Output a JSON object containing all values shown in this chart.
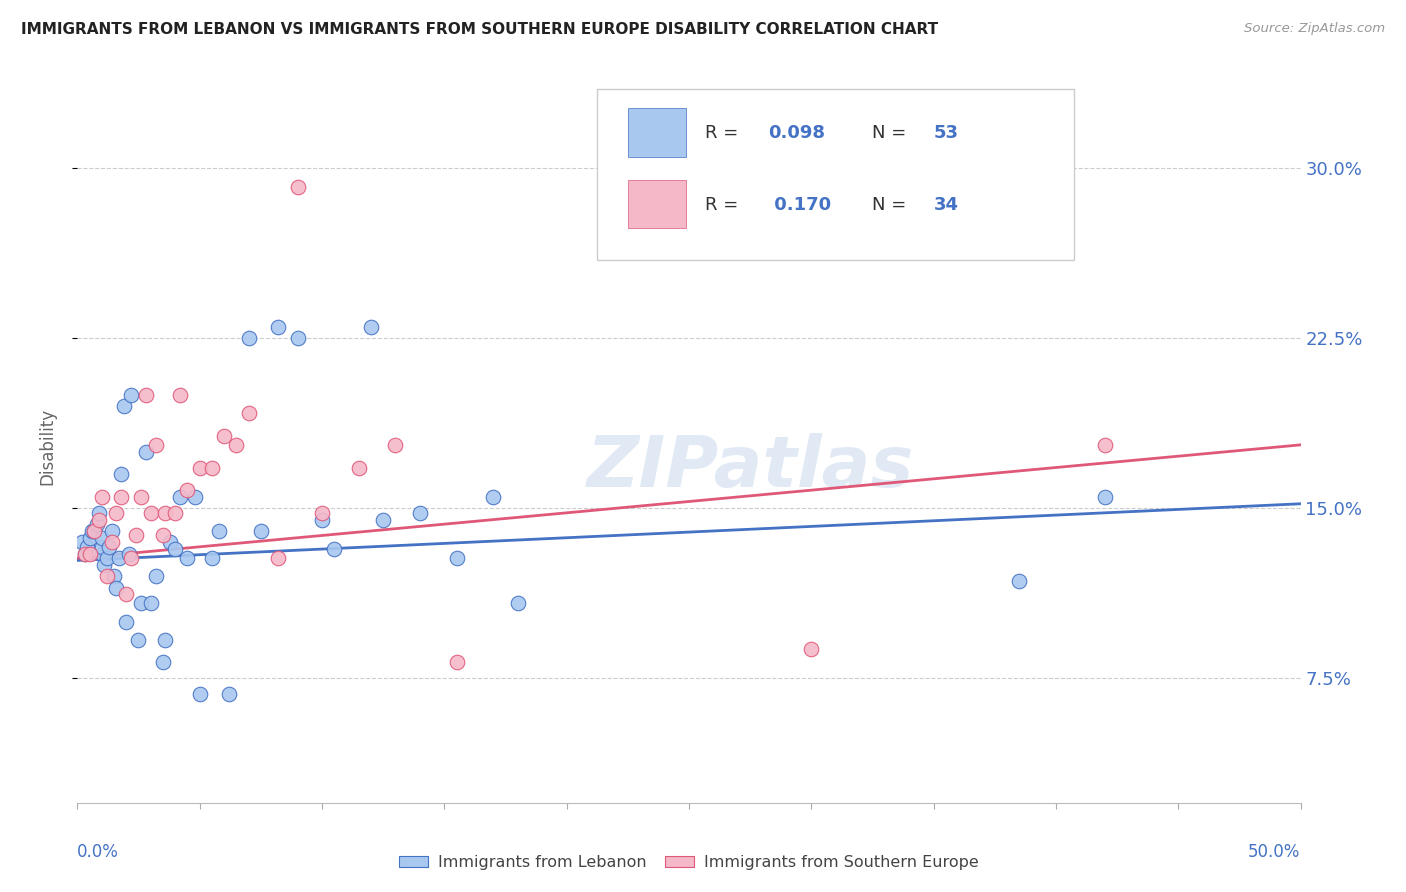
{
  "title": "IMMIGRANTS FROM LEBANON VS IMMIGRANTS FROM SOUTHERN EUROPE DISABILITY CORRELATION CHART",
  "source": "Source: ZipAtlas.com",
  "ylabel": "Disability",
  "yticks": [
    0.075,
    0.15,
    0.225,
    0.3
  ],
  "ytick_labels": [
    "7.5%",
    "15.0%",
    "22.5%",
    "30.0%"
  ],
  "xlim": [
    0.0,
    0.5
  ],
  "ylim": [
    0.02,
    0.335
  ],
  "legend1_R": "0.098",
  "legend1_N": "53",
  "legend2_R": "0.170",
  "legend2_N": "34",
  "color_blue": "#a8c8f0",
  "color_pink": "#f5b8c8",
  "line_color_blue": "#4472c4",
  "line_color_pink": "#e05878",
  "legend_text_color": "#4472c4",
  "watermark": "ZIPatlas",
  "blue_x": [
    0.002,
    0.003,
    0.004,
    0.005,
    0.006,
    0.007,
    0.008,
    0.009,
    0.01,
    0.01,
    0.01,
    0.011,
    0.012,
    0.013,
    0.014,
    0.015,
    0.016,
    0.017,
    0.018,
    0.019,
    0.02,
    0.021,
    0.022,
    0.025,
    0.026,
    0.028,
    0.03,
    0.032,
    0.035,
    0.036,
    0.038,
    0.04,
    0.042,
    0.045,
    0.048,
    0.05,
    0.055,
    0.058,
    0.062,
    0.07,
    0.075,
    0.082,
    0.09,
    0.1,
    0.105,
    0.12,
    0.125,
    0.14,
    0.155,
    0.17,
    0.18,
    0.385,
    0.42
  ],
  "blue_y": [
    0.135,
    0.13,
    0.133,
    0.137,
    0.14,
    0.14,
    0.143,
    0.148,
    0.13,
    0.133,
    0.137,
    0.125,
    0.128,
    0.133,
    0.14,
    0.12,
    0.115,
    0.128,
    0.165,
    0.195,
    0.1,
    0.13,
    0.2,
    0.092,
    0.108,
    0.175,
    0.108,
    0.12,
    0.082,
    0.092,
    0.135,
    0.132,
    0.155,
    0.128,
    0.155,
    0.068,
    0.128,
    0.14,
    0.068,
    0.225,
    0.14,
    0.23,
    0.225,
    0.145,
    0.132,
    0.23,
    0.145,
    0.148,
    0.128,
    0.155,
    0.108,
    0.118,
    0.155
  ],
  "pink_x": [
    0.003,
    0.005,
    0.007,
    0.009,
    0.01,
    0.012,
    0.014,
    0.016,
    0.018,
    0.02,
    0.022,
    0.024,
    0.026,
    0.028,
    0.03,
    0.032,
    0.035,
    0.036,
    0.04,
    0.042,
    0.045,
    0.05,
    0.055,
    0.06,
    0.065,
    0.07,
    0.082,
    0.09,
    0.1,
    0.115,
    0.13,
    0.155,
    0.3,
    0.42
  ],
  "pink_y": [
    0.13,
    0.13,
    0.14,
    0.145,
    0.155,
    0.12,
    0.135,
    0.148,
    0.155,
    0.112,
    0.128,
    0.138,
    0.155,
    0.2,
    0.148,
    0.178,
    0.138,
    0.148,
    0.148,
    0.2,
    0.158,
    0.168,
    0.168,
    0.182,
    0.178,
    0.192,
    0.128,
    0.292,
    0.148,
    0.168,
    0.178,
    0.082,
    0.088,
    0.178
  ],
  "blue_line_x": [
    0.0,
    0.5
  ],
  "blue_line_y": [
    0.127,
    0.152
  ],
  "pink_line_x": [
    0.0,
    0.5
  ],
  "pink_line_y": [
    0.128,
    0.178
  ]
}
